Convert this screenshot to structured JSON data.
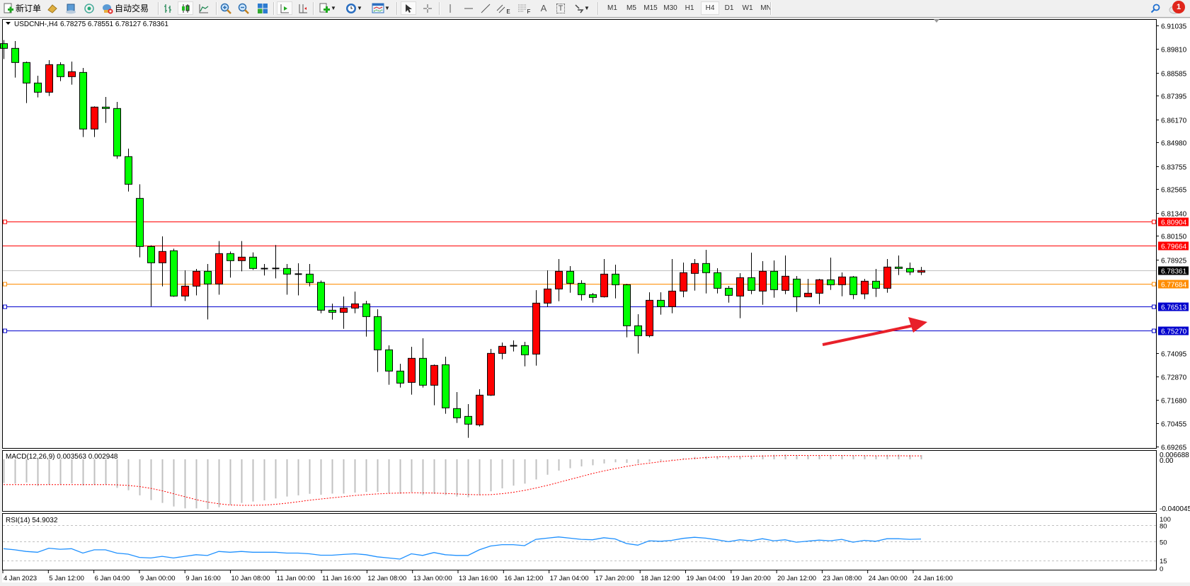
{
  "toolbar": {
    "new_order_label": "新订单",
    "auto_trading_label": "自动交易",
    "timeframes": [
      "M1",
      "M5",
      "M15",
      "M30",
      "H1",
      "H4",
      "D1",
      "W1",
      "MN"
    ],
    "active_timeframe": "H4",
    "notification_count": "1",
    "tools": {
      "fibo_expansion": "E",
      "fibo_fan": "F",
      "text": "A",
      "text_label": "T"
    }
  },
  "chart": {
    "header": "USDCNH-,H4",
    "ohlc_text": "6.78275 6.78551 6.78127 6.78361",
    "macd_label": "MACD(12,26,9) 0.003563 0.002948",
    "rsi_label": "RSI(14) 54.9032",
    "colors": {
      "up": "#ff0000",
      "down": "#00ff00",
      "rsi": "#1e90ff",
      "signal": "#ff0000",
      "histogram": "#c0c0c0",
      "arrow": "#e8202a"
    }
  },
  "chart_data": {
    "type": "candlestick",
    "symbol": "USDCNH-",
    "timeframe": "H4",
    "price_range": [
      6.69265,
      6.91035
    ],
    "price_ticks": [
      "6.91035",
      "6.89810",
      "6.88585",
      "6.87395",
      "6.86170",
      "6.84980",
      "6.83755",
      "6.82565",
      "6.81340",
      "6.80150",
      "6.78925",
      "6.74095",
      "6.72870",
      "6.71680",
      "6.70455",
      "6.69265"
    ],
    "time_labels": [
      "4 Jan 2023",
      "5 Jan 12:00",
      "6 Jan 04:00",
      "9 Jan 00:00",
      "9 Jan 16:00",
      "10 Jan 08:00",
      "11 Jan 00:00",
      "11 Jan 16:00",
      "12 Jan 08:00",
      "13 Jan 00:00",
      "13 Jan 16:00",
      "16 Jan 12:00",
      "17 Jan 04:00",
      "17 Jan 20:00",
      "18 Jan 12:00",
      "19 Jan 04:00",
      "19 Jan 20:00",
      "20 Jan 12:00",
      "23 Jan 08:00",
      "24 Jan 00:00",
      "24 Jan 16:00"
    ],
    "ohlc_columns": [
      "open",
      "high",
      "low",
      "close"
    ],
    "ohlc": [
      [
        6.90096,
        6.90279,
        6.89303,
        6.89852
      ],
      [
        6.89852,
        6.9023,
        6.88339,
        6.8912
      ],
      [
        6.8912,
        6.89169,
        6.87021,
        6.88058
      ],
      [
        6.88058,
        6.88437,
        6.87314,
        6.87583
      ],
      [
        6.87583,
        6.89242,
        6.87388,
        6.8901
      ],
      [
        6.8901,
        6.89132,
        6.88156,
        6.88388
      ],
      [
        6.88388,
        6.89169,
        6.87973,
        6.88644
      ],
      [
        6.88607,
        6.88839,
        6.85264,
        6.85679
      ],
      [
        6.85679,
        6.86851,
        6.85264,
        6.86814
      ],
      [
        6.86814,
        6.87339,
        6.85996,
        6.86741
      ],
      [
        6.86741,
        6.87082,
        6.84142,
        6.84288
      ],
      [
        6.84252,
        6.84667,
        6.82446,
        6.82824
      ],
      [
        6.82092,
        6.82824,
        6.79042,
        6.79603
      ],
      [
        6.79603,
        6.79664,
        6.76513,
        6.78761
      ],
      [
        6.78761,
        6.80128,
        6.77541,
        6.79347
      ],
      [
        6.79383,
        6.79493,
        6.77004,
        6.77041
      ],
      [
        6.77041,
        6.78371,
        6.76785,
        6.77554
      ],
      [
        6.77554,
        6.78444,
        6.77077,
        6.78322
      ],
      [
        6.78322,
        6.787,
        6.75833,
        6.77663
      ],
      [
        6.77663,
        6.79884,
        6.77114,
        6.79237
      ],
      [
        6.79237,
        6.79347,
        6.77993,
        6.78871
      ],
      [
        6.78871,
        6.79884,
        6.78322,
        6.79054
      ],
      [
        6.79054,
        6.79298,
        6.78395,
        6.78468
      ],
      [
        6.7846,
        6.787,
        6.78103,
        6.78452
      ],
      [
        6.78468,
        6.79677,
        6.77956,
        6.78465
      ],
      [
        6.78468,
        6.787,
        6.77114,
        6.78176
      ],
      [
        6.78176,
        6.78737,
        6.77077,
        6.7817
      ],
      [
        6.78175,
        6.787,
        6.77541,
        6.77736
      ],
      [
        6.77748,
        6.77846,
        6.7615,
        6.76309
      ],
      [
        6.76309,
        6.7665,
        6.7582,
        6.76199
      ],
      [
        6.76199,
        6.77016,
        6.75345,
        6.76418
      ],
      [
        6.76418,
        6.77272,
        6.7615,
        6.76638
      ],
      [
        6.76638,
        6.76797,
        6.74942,
        6.75979
      ],
      [
        6.75979,
        6.76357,
        6.73112,
        6.74259
      ],
      [
        6.74259,
        6.74491,
        6.72453,
        6.73161
      ],
      [
        6.73161,
        6.73539,
        6.72307,
        6.72538
      ],
      [
        6.72575,
        6.74417,
        6.71941,
        6.7382
      ],
      [
        6.7382,
        6.74857,
        6.72307,
        6.72429
      ],
      [
        6.72429,
        6.73502,
        6.71392,
        6.73454
      ],
      [
        6.7349,
        6.73905,
        6.70952,
        6.71257
      ],
      [
        6.71221,
        6.72075,
        6.70476,
        6.70745
      ],
      [
        6.70818,
        6.71453,
        6.69708,
        6.70415
      ],
      [
        6.70379,
        6.72221,
        6.70293,
        6.71916
      ],
      [
        6.71916,
        6.74308,
        6.7188,
        6.74076
      ],
      [
        6.74076,
        6.74637,
        6.73771,
        6.74442
      ],
      [
        6.7446,
        6.74747,
        6.74173,
        6.7447
      ],
      [
        6.74478,
        6.74674,
        6.73405,
        6.74003
      ],
      [
        6.74039,
        6.77346,
        6.73441,
        6.76675
      ],
      [
        6.76675,
        6.7837,
        6.76479,
        6.77407
      ],
      [
        6.77407,
        6.78956,
        6.76772,
        6.78322
      ],
      [
        6.78322,
        6.7859,
        6.77211,
        6.77699
      ],
      [
        6.77699,
        6.77858,
        6.76809,
        6.77114
      ],
      [
        6.77114,
        6.77199,
        6.76699,
        6.76967
      ],
      [
        6.77004,
        6.78956,
        6.76967,
        6.78175
      ],
      [
        6.78175,
        6.78663,
        6.76919,
        6.77626
      ],
      [
        6.77626,
        6.77675,
        6.74906,
        6.75503
      ],
      [
        6.75503,
        6.76101,
        6.74064,
        6.74991
      ],
      [
        6.74991,
        6.77236,
        6.74906,
        6.76821
      ],
      [
        6.76821,
        6.77236,
        6.76077,
        6.76492
      ],
      [
        6.76492,
        6.78956,
        6.7615,
        6.77297
      ],
      [
        6.77297,
        6.78773,
        6.7698,
        6.78249
      ],
      [
        6.78212,
        6.78956,
        6.77321,
        6.78725
      ],
      [
        6.78725,
        6.79432,
        6.77175,
        6.78249
      ],
      [
        6.78249,
        6.7848,
        6.77175,
        6.77443
      ],
      [
        6.77443,
        6.77565,
        6.76699,
        6.77077
      ],
      [
        6.77041,
        6.78224,
        6.75894,
        6.77992
      ],
      [
        6.77992,
        6.79286,
        6.77138,
        6.77334
      ],
      [
        6.77297,
        6.78847,
        6.76589,
        6.78322
      ],
      [
        6.78322,
        6.78883,
        6.76955,
        6.7737
      ],
      [
        6.77334,
        6.79139,
        6.77138,
        6.78066
      ],
      [
        6.77919,
        6.78078,
        6.76223,
        6.77004
      ],
      [
        6.77004,
        6.77931,
        6.77004,
        6.77187
      ],
      [
        6.77187,
        6.77931,
        6.76626,
        6.77883
      ],
      [
        6.77883,
        6.7903,
        6.77358,
        6.77626
      ],
      [
        6.77626,
        6.78261,
        6.77029,
        6.78029
      ],
      [
        6.78029,
        6.78078,
        6.76882,
        6.77114
      ],
      [
        6.77151,
        6.77931,
        6.76882,
        6.77809
      ],
      [
        6.77809,
        6.78444,
        6.76992,
        6.77443
      ],
      [
        6.77443,
        6.78956,
        6.77212,
        6.78541
      ],
      [
        6.78541,
        6.79139,
        6.78127,
        6.78468
      ],
      [
        6.78468,
        6.78773,
        6.78127,
        6.78285
      ],
      [
        6.78275,
        6.78551,
        6.78127,
        6.78361
      ]
    ],
    "horizontal_lines": [
      {
        "price": 6.80904,
        "label": "6.80904",
        "color": "#ff0000",
        "marker": true
      },
      {
        "price": 6.79664,
        "label": "6.79664",
        "color": "#ff0000",
        "marker": false
      },
      {
        "price": 6.78361,
        "label": "6.78361",
        "color": "#c0c0c0",
        "label_bg": "#000000",
        "marker": false
      },
      {
        "price": 6.77684,
        "label": "6.77684",
        "color": "#ff8c00",
        "marker": true
      },
      {
        "price": 6.76513,
        "label": "6.76513",
        "color": "#0000cd",
        "marker": true
      },
      {
        "price": 6.7527,
        "label": "6.75270",
        "color": "#0000cd",
        "marker": true
      }
    ],
    "macd": {
      "range": [
        -0.040045,
        0.006688
      ],
      "tick_labels": [
        "0.006688",
        "0.00",
        "-0.040045"
      ],
      "main": [
        -0.02,
        -0.0205,
        -0.0195,
        -0.0225,
        -0.0215,
        -0.0212,
        -0.0203,
        -0.0221,
        -0.0217,
        -0.0212,
        -0.0241,
        -0.0261,
        -0.0304,
        -0.0344,
        -0.0368,
        -0.0398,
        -0.0414,
        -0.0414,
        -0.042,
        -0.0404,
        -0.0384,
        -0.0368,
        -0.0356,
        -0.0346,
        -0.033,
        -0.0314,
        -0.0304,
        -0.0291,
        -0.0299,
        -0.0289,
        -0.0289,
        -0.0281,
        -0.0275,
        -0.0275,
        -0.0285,
        -0.0291,
        -0.0277,
        -0.0301,
        -0.0291,
        -0.0301,
        -0.0314,
        -0.032,
        -0.0304,
        -0.027,
        -0.0245,
        -0.0222,
        -0.0205,
        -0.017,
        -0.013,
        -0.0095,
        -0.0075,
        -0.006,
        -0.005,
        -0.0035,
        -0.0025,
        -0.003,
        -0.0035,
        -0.002,
        -0.0015,
        -0.0005,
        0.001,
        0.002,
        0.0025,
        0.0025,
        0.002,
        0.0025,
        0.003,
        0.0035,
        0.0038,
        0.004,
        0.0035,
        0.003,
        0.0032,
        0.0035,
        0.0035,
        0.003,
        0.0032,
        0.003,
        0.0038,
        0.004,
        0.0037,
        0.003563
      ],
      "signal": [
        -0.0213,
        -0.0213,
        -0.0213,
        -0.0213,
        -0.0213,
        -0.0213,
        -0.0213,
        -0.0213,
        -0.0213,
        -0.0213,
        -0.0215,
        -0.022,
        -0.023,
        -0.0245,
        -0.0265,
        -0.029,
        -0.0315,
        -0.034,
        -0.036,
        -0.0375,
        -0.0385,
        -0.0388,
        -0.0388,
        -0.0386,
        -0.038,
        -0.037,
        -0.0358,
        -0.0345,
        -0.0335,
        -0.0325,
        -0.0315,
        -0.0305,
        -0.0298,
        -0.0292,
        -0.0287,
        -0.0284,
        -0.0282,
        -0.0283,
        -0.0285,
        -0.0288,
        -0.0292,
        -0.0297,
        -0.0299,
        -0.0298,
        -0.029,
        -0.0278,
        -0.0262,
        -0.0242,
        -0.022,
        -0.0195,
        -0.017,
        -0.0145,
        -0.012,
        -0.0098,
        -0.0078,
        -0.006,
        -0.0045,
        -0.0032,
        -0.002,
        -0.001,
        0.0,
        0.0008,
        0.0015,
        0.002,
        0.0022,
        0.0024,
        0.0026,
        0.0028,
        0.003,
        0.0032,
        0.0033,
        0.0032,
        0.0032,
        0.0032,
        0.0032,
        0.0031,
        0.0031,
        0.003,
        0.003,
        0.003,
        0.0029,
        0.002948
      ]
    },
    "rsi": {
      "levels": [
        80,
        50,
        15
      ],
      "tick_labels": [
        "100",
        "80",
        "50",
        "15",
        "0"
      ],
      "values": [
        37,
        35,
        32,
        30.5,
        38,
        36,
        37,
        29,
        35,
        35,
        29,
        27,
        21,
        20,
        23,
        20,
        23,
        26,
        24.5,
        32,
        30.5,
        32,
        30.5,
        30.5,
        30.5,
        29,
        29,
        27.6,
        25,
        25,
        26.5,
        27.6,
        26,
        22,
        20,
        17.8,
        27.6,
        24.6,
        30,
        26,
        24.6,
        24.6,
        35,
        42,
        44.5,
        44.5,
        42.6,
        54.3,
        56.5,
        58.7,
        56.5,
        54.3,
        53.4,
        57.3,
        55,
        46.5,
        43.5,
        51.6,
        50.7,
        52.4,
        56,
        58,
        56.5,
        53.4,
        50,
        53.4,
        51.6,
        55.4,
        51.6,
        53.4,
        49,
        51,
        52.8,
        51.6,
        54.3,
        49,
        52.4,
        50.7,
        55.4,
        55.4,
        54.3,
        54.9032
      ]
    }
  }
}
